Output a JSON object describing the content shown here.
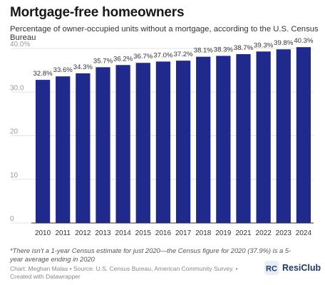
{
  "header": {
    "title": "Mortgage-free homeowners",
    "subtitle": "Percentage of owner-occupied units without a mortgage, according to the U.S. Census Bureau"
  },
  "chart_data": {
    "type": "bar",
    "categories": [
      "2010",
      "2011",
      "2012",
      "2013",
      "2014",
      "2015",
      "2016",
      "2017",
      "2018",
      "2019",
      "2021",
      "2022",
      "2023",
      "2024"
    ],
    "values": [
      32.8,
      33.6,
      34.3,
      35.7,
      36.2,
      36.7,
      37.0,
      37.2,
      38.1,
      38.3,
      38.7,
      39.3,
      39.8,
      40.3
    ],
    "data_labels": [
      "32.8%",
      "33.6%",
      "34.3%",
      "35.7%",
      "36.2%",
      "36.7%",
      "37.0%",
      "37.2%",
      "38.1%",
      "38.3%",
      "38.7%",
      "39.3%",
      "39.8%",
      "40.3%"
    ],
    "title": "Mortgage-free homeowners",
    "ylim": [
      0,
      40
    ],
    "yticks": [
      0,
      10,
      20,
      30,
      40
    ],
    "ytick_labels": [
      "0",
      "10",
      "20",
      "30.0",
      "40.0%"
    ],
    "grid": true,
    "bar_color": "#1f2a8c"
  },
  "footer": {
    "footnote": "*There isn't a 1-year Census estimate for just 2020—the Census figure for 2020 (37.9%) is a 5-year average ending in 2020",
    "credit": "Chart: Meghan Malas • Source: U.S. Census Bureau, American Community Survey. • Created with Datawrapper"
  },
  "brand": {
    "logo_text": "ResiClub",
    "logo_mark": "RC",
    "logo_color": "#1e3765"
  }
}
